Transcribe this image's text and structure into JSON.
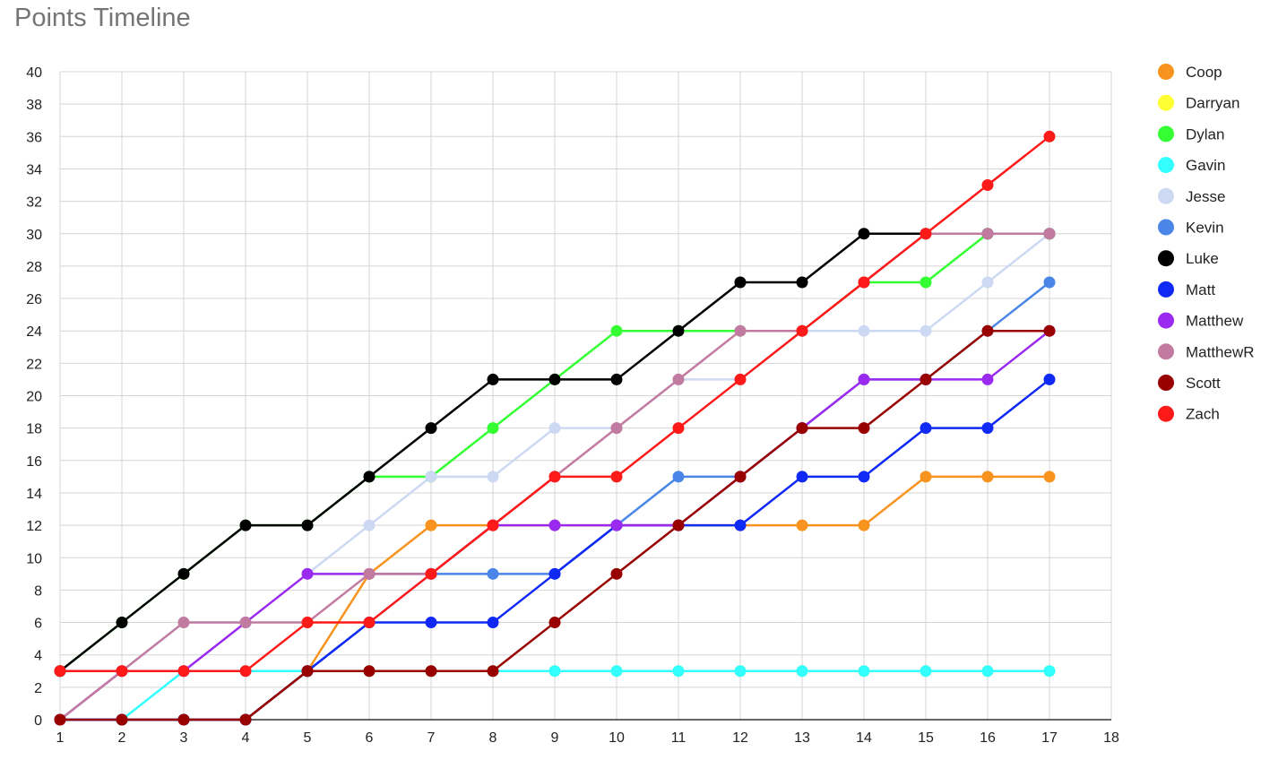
{
  "chart_data": {
    "type": "line",
    "title": "Points Timeline",
    "xlabel": "",
    "ylabel": "",
    "x": [
      1,
      2,
      3,
      4,
      5,
      6,
      7,
      8,
      9,
      10,
      11,
      12,
      13,
      14,
      15,
      16,
      17
    ],
    "x_ticks": [
      1,
      2,
      3,
      4,
      5,
      6,
      7,
      8,
      9,
      10,
      11,
      12,
      13,
      14,
      15,
      16,
      17,
      18
    ],
    "y_ticks": [
      0,
      2,
      4,
      6,
      8,
      10,
      12,
      14,
      16,
      18,
      20,
      22,
      24,
      26,
      28,
      30,
      32,
      34,
      36,
      38,
      40
    ],
    "xlim": [
      1,
      18
    ],
    "ylim": [
      0,
      40
    ],
    "grid": true,
    "legend_position": "right",
    "series": [
      {
        "name": "Coop",
        "color": "#f7931e",
        "values": [
          0,
          0,
          0,
          0,
          3,
          9,
          12,
          12,
          12,
          12,
          12,
          12,
          12,
          12,
          15,
          15,
          15
        ]
      },
      {
        "name": "Darryan",
        "color": "#ffff33",
        "values": [
          0,
          0,
          0,
          0,
          3,
          3,
          3,
          3,
          3,
          3,
          3,
          3,
          3,
          3,
          3,
          3,
          3
        ]
      },
      {
        "name": "Dylan",
        "color": "#33ff33",
        "values": [
          3,
          6,
          9,
          12,
          12,
          15,
          15,
          18,
          21,
          24,
          24,
          24,
          24,
          27,
          27,
          30,
          30
        ]
      },
      {
        "name": "Gavin",
        "color": "#33ffff",
        "values": [
          0,
          0,
          3,
          3,
          3,
          3,
          3,
          3,
          3,
          3,
          3,
          3,
          3,
          3,
          3,
          3,
          3
        ]
      },
      {
        "name": "Jesse",
        "color": "#cdd9f3",
        "values": [
          0,
          3,
          6,
          6,
          9,
          12,
          15,
          15,
          18,
          18,
          21,
          21,
          24,
          24,
          24,
          27,
          30
        ]
      },
      {
        "name": "Kevin",
        "color": "#4a86e8",
        "values": [
          0,
          0,
          0,
          0,
          3,
          6,
          9,
          9,
          9,
          12,
          15,
          15,
          18,
          21,
          21,
          24,
          27
        ]
      },
      {
        "name": "Luke",
        "color": "#000000",
        "values": [
          3,
          6,
          9,
          12,
          12,
          15,
          18,
          21,
          21,
          21,
          24,
          27,
          27,
          30,
          30,
          30,
          30
        ]
      },
      {
        "name": "Matt",
        "color": "#1029f5",
        "values": [
          0,
          0,
          0,
          0,
          3,
          6,
          6,
          6,
          9,
          12,
          12,
          12,
          15,
          15,
          18,
          18,
          21
        ]
      },
      {
        "name": "Matthew",
        "color": "#9b2af0",
        "values": [
          0,
          3,
          3,
          6,
          9,
          9,
          9,
          12,
          12,
          12,
          12,
          15,
          18,
          21,
          21,
          21,
          24
        ]
      },
      {
        "name": "MatthewR",
        "color": "#c27ba0",
        "values": [
          0,
          3,
          6,
          6,
          6,
          9,
          9,
          12,
          15,
          18,
          21,
          24,
          24,
          27,
          30,
          30,
          30
        ]
      },
      {
        "name": "Scott",
        "color": "#990000",
        "values": [
          0,
          0,
          0,
          0,
          3,
          3,
          3,
          3,
          6,
          9,
          12,
          15,
          18,
          18,
          21,
          24,
          24
        ]
      },
      {
        "name": "Zach",
        "color": "#ff1a1a",
        "values": [
          3,
          3,
          3,
          3,
          6,
          6,
          9,
          12,
          15,
          15,
          18,
          21,
          24,
          27,
          30,
          33,
          36
        ]
      }
    ]
  }
}
